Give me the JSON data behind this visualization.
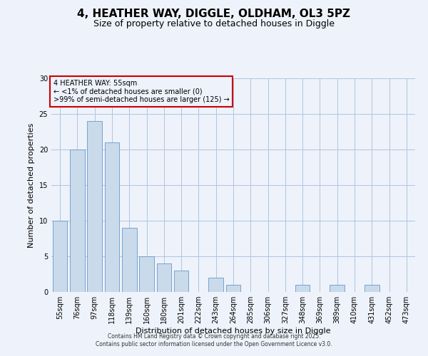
{
  "title": "4, HEATHER WAY, DIGGLE, OLDHAM, OL3 5PZ",
  "subtitle": "Size of property relative to detached houses in Diggle",
  "xlabel": "Distribution of detached houses by size in Diggle",
  "ylabel": "Number of detached properties",
  "categories": [
    "55sqm",
    "76sqm",
    "97sqm",
    "118sqm",
    "139sqm",
    "160sqm",
    "180sqm",
    "201sqm",
    "222sqm",
    "243sqm",
    "264sqm",
    "285sqm",
    "306sqm",
    "327sqm",
    "348sqm",
    "369sqm",
    "389sqm",
    "410sqm",
    "431sqm",
    "452sqm",
    "473sqm"
  ],
  "values": [
    10,
    20,
    24,
    21,
    9,
    5,
    4,
    3,
    0,
    2,
    1,
    0,
    0,
    0,
    1,
    0,
    1,
    0,
    1,
    0,
    0
  ],
  "bar_color": "#c9daea",
  "bar_edge_color": "#6699cc",
  "ylim": [
    0,
    30
  ],
  "yticks": [
    0,
    5,
    10,
    15,
    20,
    25,
    30
  ],
  "annotation_title": "4 HEATHER WAY: 55sqm",
  "annotation_line2": "← <1% of detached houses are smaller (0)",
  "annotation_line3": ">99% of semi-detached houses are larger (125) →",
  "annotation_box_color": "#cc0000",
  "footer_line1": "Contains HM Land Registry data © Crown copyright and database right 2025.",
  "footer_line2": "Contains public sector information licensed under the Open Government Licence v3.0.",
  "background_color": "#eef2fa",
  "grid_color": "#aec6e0",
  "title_fontsize": 11,
  "subtitle_fontsize": 9,
  "label_fontsize": 8,
  "tick_fontsize": 7,
  "annotation_fontsize": 7,
  "footer_fontsize": 5.5
}
